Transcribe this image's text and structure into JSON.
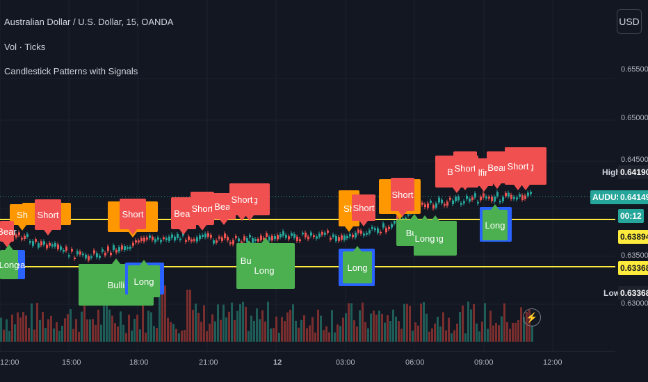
{
  "header": {
    "title": "Australian Dollar / U.S. Dollar, 15, OANDA",
    "indicators": [
      "Vol · Ticks",
      "Candlestick Patterns with Signals"
    ],
    "currency_button": "USD"
  },
  "price_axis": {
    "ticks": [
      "0.65500",
      "0.65000",
      "0.64500",
      "0.63500",
      "0.63000"
    ]
  },
  "time_axis": {
    "ticks": [
      "12:00",
      "15:00",
      "18:00",
      "21:00",
      "12",
      "03:00",
      "06:00",
      "09:00",
      "12:00"
    ]
  },
  "price_tags": {
    "high_label": "High",
    "high_value": "0.64190",
    "symbol": "AUDUSD",
    "last_value": "0.64149",
    "countdown": "00:12",
    "level1": "0.63894",
    "level2": "0.63368",
    "low_label": "Low",
    "low_value": "0.63368"
  },
  "signals": {
    "bear": "Bear",
    "short": "Short",
    "long": "Long",
    "bulli": "Bulli",
    "ifing": "lfing",
    "sh": "Sh",
    "ar": "ar",
    "fin": "lfin",
    "ea": "ea",
    "b": "B",
    "dash": "-"
  },
  "colors": {
    "background": "#131722",
    "bull_candle": "#26a69a",
    "bear_candle": "#ef5350",
    "short_label": "#f05050",
    "long_label": "#4caf50",
    "engulf_label": "#ff9800",
    "level_line": "#ffeb3b",
    "long_box": "#2962ff"
  },
  "icons": {
    "flash": "flash-icon"
  }
}
